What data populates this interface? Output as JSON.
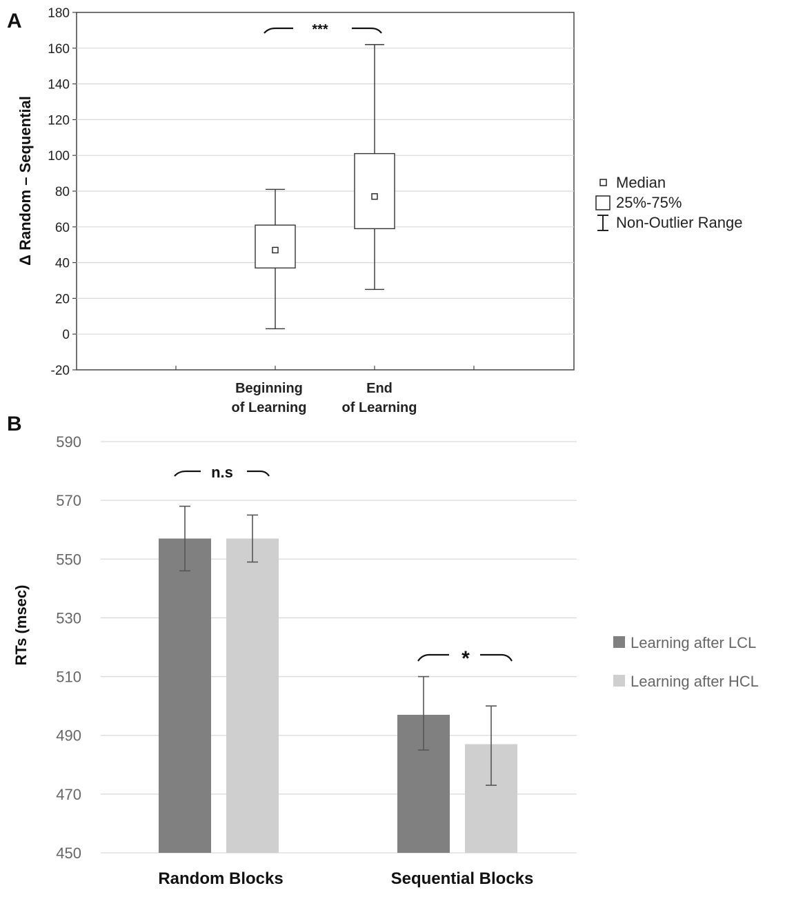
{
  "chart_data": [
    {
      "panel": "A",
      "type": "box",
      "ylabel": "Δ Random – Sequential",
      "ylim": [
        -20,
        180
      ],
      "yticks": [
        -20,
        0,
        20,
        40,
        60,
        80,
        100,
        120,
        140,
        160,
        180
      ],
      "categories": [
        {
          "line1": "Beginning",
          "line2": "of Learning"
        },
        {
          "line1": "End",
          "line2": "of Learning"
        }
      ],
      "boxes": [
        {
          "whisker_low": 3,
          "q1": 37,
          "median": 47,
          "q3": 61,
          "whisker_high": 81
        },
        {
          "whisker_low": 25,
          "q1": 59,
          "median": 77,
          "q3": 101,
          "whisker_high": 162
        }
      ],
      "significance": "***",
      "legend": [
        "Median",
        "25%-75%",
        "Non-Outlier Range"
      ],
      "grid": true
    },
    {
      "panel": "B",
      "type": "bar",
      "ylabel": "RTs (msec)",
      "ylim": [
        450,
        590
      ],
      "yticks": [
        450,
        470,
        490,
        510,
        530,
        550,
        570,
        590
      ],
      "categories": [
        "Random Blocks",
        "Sequential Blocks"
      ],
      "series": [
        {
          "name": "Learning after LCL",
          "color": "#808080",
          "values": [
            557,
            497
          ],
          "err_low": [
            546,
            485
          ],
          "err_high": [
            568,
            510
          ]
        },
        {
          "name": "Learning after HCL",
          "color": "#cfcfcf",
          "values": [
            557,
            487
          ],
          "err_low": [
            549,
            473
          ],
          "err_high": [
            565,
            500
          ]
        }
      ],
      "significance": [
        "n.s",
        "*"
      ],
      "grid": true
    }
  ]
}
